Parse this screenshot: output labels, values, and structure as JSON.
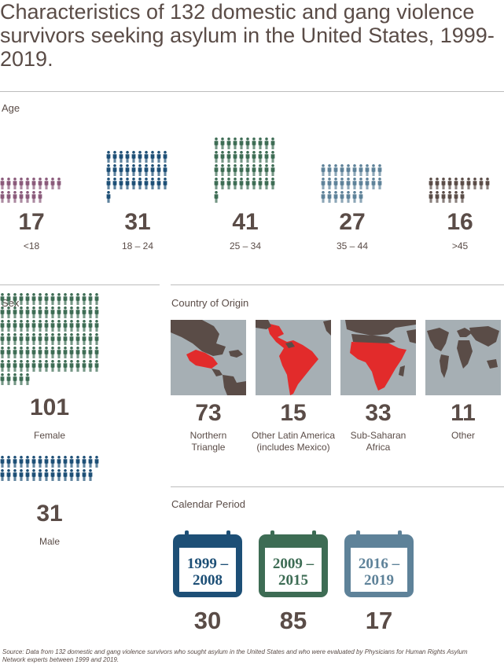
{
  "title": "Characteristics of 132 domestic and gang violence survivors seeking asylum in the United States, 1999-2019.",
  "age": {
    "label": "Age",
    "groups": [
      {
        "count": "17",
        "range": "<18",
        "color": "#8a5a7a",
        "n": 17
      },
      {
        "count": "31",
        "range": "18 – 24",
        "color": "#1d4f76",
        "n": 31
      },
      {
        "count": "41",
        "range": "25 – 34",
        "color": "#3d6c54",
        "n": 41
      },
      {
        "count": "27",
        "range": "35 – 44",
        "color": "#5e8299",
        "n": 27
      },
      {
        "count": "16",
        "range": ">45",
        "color": "#5a4c47",
        "n": 16
      }
    ]
  },
  "sex": {
    "label": "Sex",
    "female": {
      "count": "101",
      "label": "Female",
      "color": "#3d6c54",
      "n": 101
    },
    "male": {
      "count": "31",
      "label": "Male",
      "color": "#1d4f76",
      "n": 31
    }
  },
  "origin": {
    "label": "Country of Origin",
    "items": [
      {
        "count": "73",
        "label": "Northern Triangle",
        "region": "northern-triangle"
      },
      {
        "count": "15",
        "label": "Other Latin America (includes Mexico)",
        "region": "latin-america"
      },
      {
        "count": "33",
        "label": "Sub-Saharan Africa",
        "region": "sub-saharan-africa"
      },
      {
        "count": "11",
        "label": "Other",
        "region": "world"
      }
    ],
    "colors": {
      "water": "#a6afb4",
      "land": "#5a4c47",
      "highlight": "#e22b2b"
    }
  },
  "period": {
    "label": "Calendar Period",
    "items": [
      {
        "line1": "1999 –",
        "line2": "2008",
        "count": "30",
        "color": "#1d4f76"
      },
      {
        "line1": "2009 –",
        "line2": "2015",
        "count": "85",
        "color": "#3d6c54"
      },
      {
        "line1": "2016 –",
        "line2": "2019",
        "count": "17",
        "color": "#5e8299"
      }
    ]
  },
  "source": "Source: Data from 132 domestic and gang violence survivors who sought asylum in the United States and who were evaluated by Physicians for Human Rights Asylum Network experts between 1999 and 2019."
}
